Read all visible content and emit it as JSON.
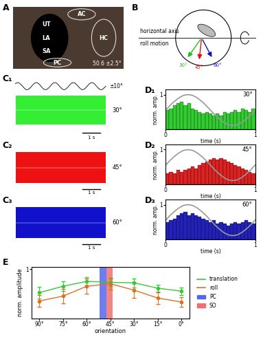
{
  "panel_labels": [
    "A",
    "B",
    "C₁",
    "C₂",
    "C₃",
    "D₁",
    "D₂",
    "D₃",
    "E"
  ],
  "panel_a": {
    "labels": [
      "AC",
      "UT",
      "LA",
      "SA",
      "PC",
      "HC"
    ],
    "caption": "50.6 ±2.5°"
  },
  "panel_b": {
    "axis_label": "horizontal axis",
    "motion_label": "roll motion",
    "arrows": [
      {
        "label": "30°",
        "color": "#22bb22"
      },
      {
        "label": "45°",
        "color": "#dd1111"
      },
      {
        "label": "60°",
        "color": "#1111bb"
      }
    ]
  },
  "panel_c": {
    "stimulus_label": "±10°",
    "scale_label": "1 s",
    "traces": [
      {
        "label": "30°",
        "color": "#33ee33"
      },
      {
        "label": "45°",
        "color": "#ee1111"
      },
      {
        "label": "60°",
        "color": "#1111cc"
      }
    ]
  },
  "chart_data": [
    {
      "type": "histogram",
      "title": "30°",
      "color": "#33cc33",
      "xlabel": "time (s)",
      "ylabel": "norm. amp.",
      "bins": [
        0,
        0.04,
        0.08,
        0.12,
        0.16,
        0.2,
        0.24,
        0.28,
        0.32,
        0.36,
        0.4,
        0.44,
        0.48,
        0.52,
        0.56,
        0.6,
        0.64,
        0.68,
        0.72,
        0.76,
        0.8,
        0.84,
        0.88,
        0.92,
        0.96,
        1.0
      ],
      "counts": [
        0.55,
        0.6,
        0.7,
        0.75,
        0.8,
        0.7,
        0.75,
        0.6,
        0.55,
        0.5,
        0.45,
        0.5,
        0.45,
        0.4,
        0.45,
        0.4,
        0.5,
        0.45,
        0.5,
        0.55,
        0.5,
        0.6,
        0.55,
        0.5,
        0.6
      ],
      "overlay": {
        "color": "#999999",
        "x": [
          0,
          0.05,
          0.1,
          0.15,
          0.2,
          0.25,
          0.3,
          0.35,
          0.4,
          0.45,
          0.5,
          0.55,
          0.6,
          0.65,
          0.7,
          0.75,
          0.8,
          0.85,
          0.9,
          0.95,
          1.0
        ],
        "values": [
          0.55,
          0.69,
          0.81,
          0.91,
          0.98,
          1.0,
          0.98,
          0.91,
          0.81,
          0.69,
          0.55,
          0.41,
          0.29,
          0.19,
          0.12,
          0.1,
          0.12,
          0.19,
          0.29,
          0.41,
          0.55
        ]
      },
      "xlim": [
        0,
        1
      ],
      "xticks": [
        0,
        1
      ],
      "ylim": [
        0,
        1.15
      ],
      "yticks": [
        1
      ]
    },
    {
      "type": "histogram",
      "title": "45°",
      "color": "#dd2222",
      "xlabel": "time (s)",
      "ylabel": "norm. amp.",
      "bins": [
        0,
        0.04,
        0.08,
        0.12,
        0.16,
        0.2,
        0.24,
        0.28,
        0.32,
        0.36,
        0.4,
        0.44,
        0.48,
        0.52,
        0.56,
        0.6,
        0.64,
        0.68,
        0.72,
        0.76,
        0.8,
        0.84,
        0.88,
        0.92,
        0.96,
        1.0
      ],
      "counts": [
        0.3,
        0.35,
        0.3,
        0.4,
        0.35,
        0.4,
        0.45,
        0.5,
        0.45,
        0.55,
        0.6,
        0.65,
        0.7,
        0.75,
        0.7,
        0.75,
        0.7,
        0.65,
        0.6,
        0.55,
        0.5,
        0.45,
        0.4,
        0.35,
        0.3
      ],
      "overlay": {
        "color": "#999999",
        "x": [
          0,
          0.05,
          0.1,
          0.15,
          0.2,
          0.25,
          0.3,
          0.35,
          0.4,
          0.45,
          0.5,
          0.55,
          0.6,
          0.65,
          0.7,
          0.75,
          0.8,
          0.85,
          0.9,
          0.95,
          1.0
        ],
        "values": [
          0.55,
          0.69,
          0.81,
          0.91,
          0.98,
          1.0,
          0.98,
          0.91,
          0.81,
          0.69,
          0.55,
          0.41,
          0.29,
          0.19,
          0.12,
          0.1,
          0.12,
          0.19,
          0.29,
          0.41,
          0.55
        ]
      },
      "xlim": [
        0,
        1
      ],
      "xticks": [
        0,
        1
      ],
      "ylim": [
        0,
        1.15
      ],
      "yticks": [
        1
      ]
    },
    {
      "type": "histogram",
      "title": "60°",
      "color": "#2222bb",
      "xlabel": "time (s)",
      "ylabel": "norm. amp.",
      "bins": [
        0,
        0.04,
        0.08,
        0.12,
        0.16,
        0.2,
        0.24,
        0.28,
        0.32,
        0.36,
        0.4,
        0.44,
        0.48,
        0.52,
        0.56,
        0.6,
        0.64,
        0.68,
        0.72,
        0.76,
        0.8,
        0.84,
        0.88,
        0.92,
        0.96,
        1.0
      ],
      "counts": [
        0.5,
        0.55,
        0.6,
        0.7,
        0.75,
        0.8,
        0.7,
        0.75,
        0.7,
        0.65,
        0.6,
        0.55,
        0.5,
        0.55,
        0.45,
        0.5,
        0.45,
        0.4,
        0.45,
        0.5,
        0.45,
        0.5,
        0.55,
        0.5,
        0.45
      ],
      "overlay": {
        "color": "#999999",
        "x": [
          0,
          0.05,
          0.1,
          0.15,
          0.2,
          0.25,
          0.3,
          0.35,
          0.4,
          0.45,
          0.5,
          0.55,
          0.6,
          0.65,
          0.7,
          0.75,
          0.8,
          0.85,
          0.9,
          0.95,
          1.0
        ],
        "values": [
          0.55,
          0.69,
          0.81,
          0.91,
          0.98,
          1.0,
          0.98,
          0.91,
          0.81,
          0.69,
          0.55,
          0.41,
          0.29,
          0.19,
          0.12,
          0.1,
          0.12,
          0.19,
          0.29,
          0.41,
          0.55
        ]
      },
      "xlim": [
        0,
        1
      ],
      "xticks": [
        0,
        1
      ],
      "ylim": [
        0,
        1.15
      ],
      "yticks": [
        1
      ]
    },
    {
      "type": "line",
      "xlabel": "orientation",
      "ylabel": "norm. amplitude",
      "x": [
        90,
        75,
        60,
        45,
        30,
        15,
        0
      ],
      "series": [
        {
          "name": "translation",
          "color": "#33cc33",
          "marker": "o",
          "values": [
            0.52,
            0.65,
            0.75,
            0.73,
            0.72,
            0.61,
            0.55
          ],
          "errors": [
            0.12,
            0.1,
            0.08,
            0.08,
            0.09,
            0.07,
            0.08
          ]
        },
        {
          "name": "roll",
          "color": "#e07020",
          "marker": "o",
          "values": [
            0.35,
            0.45,
            0.65,
            0.7,
            0.57,
            0.41,
            0.33
          ],
          "errors": [
            0.12,
            0.15,
            0.15,
            0.12,
            0.15,
            0.12,
            0.1
          ]
        }
      ],
      "bands": [
        {
          "name": "PC",
          "color": "#5566ee",
          "range": [
            47.6,
            52.1
          ]
        },
        {
          "name": "SO",
          "color": "#f07070",
          "range": [
            43.5,
            47.6
          ]
        }
      ],
      "xlim": [
        95,
        -5
      ],
      "xticks": [
        {
          "value": 90,
          "label": "90°"
        },
        {
          "value": 75,
          "label": "75°"
        },
        {
          "value": 60,
          "label": "60°"
        },
        {
          "value": 45,
          "label": "45°"
        },
        {
          "value": 30,
          "label": "30°"
        },
        {
          "value": 15,
          "label": "15°"
        },
        {
          "value": 0,
          "label": "0°"
        }
      ],
      "ylim": [
        0,
        1.05
      ],
      "yticks": [
        1
      ],
      "legend": "right"
    }
  ]
}
